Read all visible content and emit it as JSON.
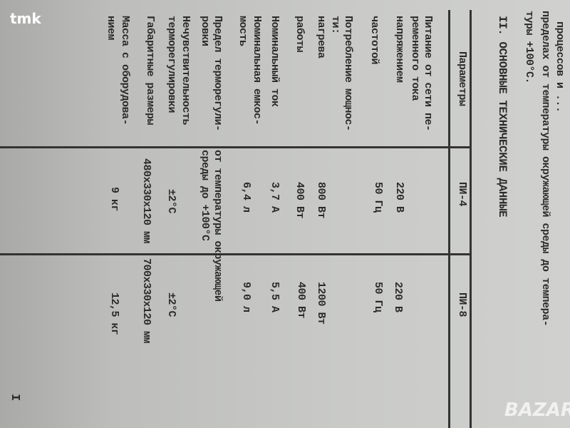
{
  "intro_lines": [
    "процессов и ...",
    "пределах от температуры окружающей среды до темпера-",
    "туры +100°С."
  ],
  "section_title": "II. ОСНОВНЫЕ ТЕХНИЧЕСКИЕ ДАННЫЕ",
  "table": {
    "headers": [
      "Параметры",
      "ПИ-4",
      "ПИ-8"
    ],
    "params": [
      "Питание от сети пе-",
      "ременного тока",
      "напряжением",
      "частотой",
      "Потребление мощнос-",
      "ти:",
      "нагрева",
      "работы",
      "Номинальный ток",
      "Номинальная емкос-",
      "мость",
      "Предел терморегули-",
      "ровки",
      "Нечувствительность",
      "терморегулировки",
      "Габаритные размеры",
      "Масса с оборудова-",
      "нием"
    ],
    "col1": [
      "220 В",
      "50 Гц",
      "800 Вт",
      "400 Вт",
      "3,7 А",
      "6,4 л",
      "от температуры окружающей",
      "среды до +100°С",
      "±2°С",
      "480х330х120 мм",
      "9 кг"
    ],
    "col2": [
      "220 В",
      "50 Гц",
      "1200 Вт",
      "400 Вт",
      "5,5 А",
      "9,0 л",
      "±2°С",
      "700х330х120 мм",
      "12,5 кг"
    ]
  },
  "page_number": "I",
  "watermarks": {
    "top_left": "tmk",
    "bottom_right": "BAZAR"
  }
}
